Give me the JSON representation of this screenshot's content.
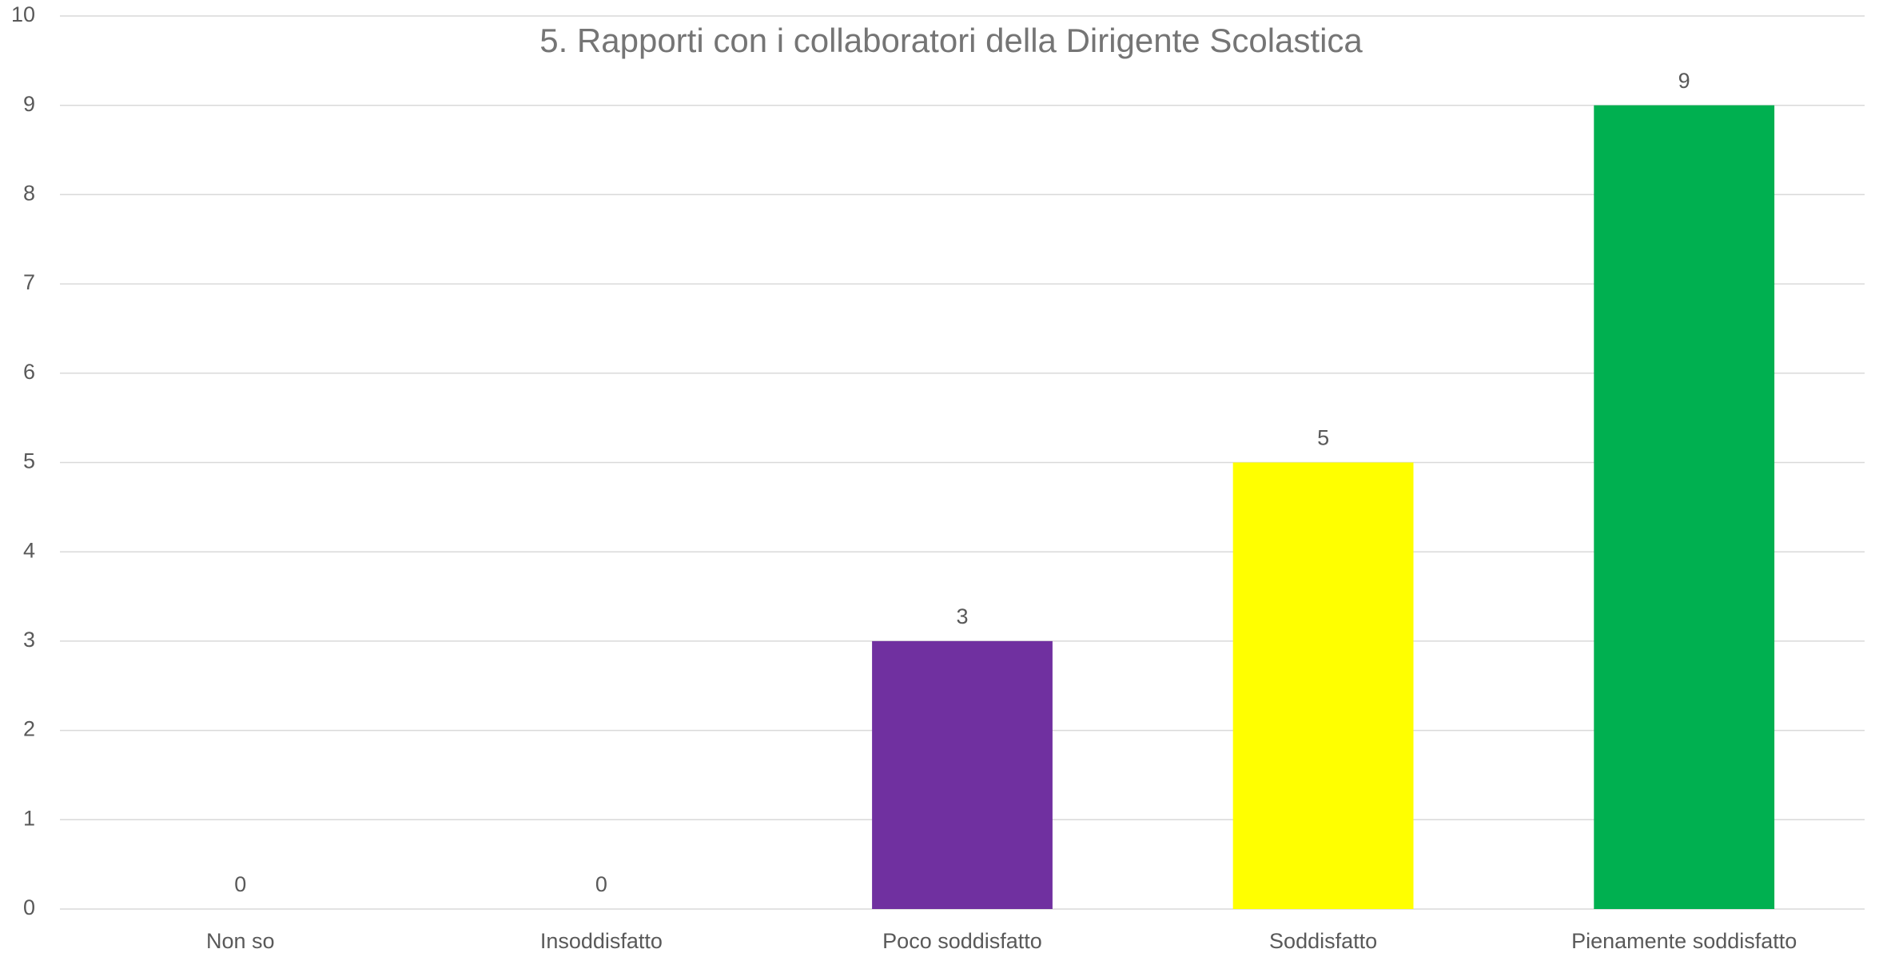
{
  "chart_data": {
    "type": "bar",
    "title": "5. Rapporti con i collaboratori della Dirigente Scolastica",
    "categories": [
      "Non so",
      "Insoddisfatto",
      "Poco soddisfatto",
      "Soddisfatto",
      "Pienamente soddisfatto"
    ],
    "values": [
      0,
      0,
      3,
      5,
      9
    ],
    "colors": [
      "#4472c4",
      "#ed7d31",
      "#7030a0",
      "#ffff00",
      "#00b050"
    ],
    "ylim": [
      0,
      10
    ],
    "yticks": [
      0,
      1,
      2,
      3,
      4,
      5,
      6,
      7,
      8,
      9,
      10
    ],
    "grid": true
  }
}
